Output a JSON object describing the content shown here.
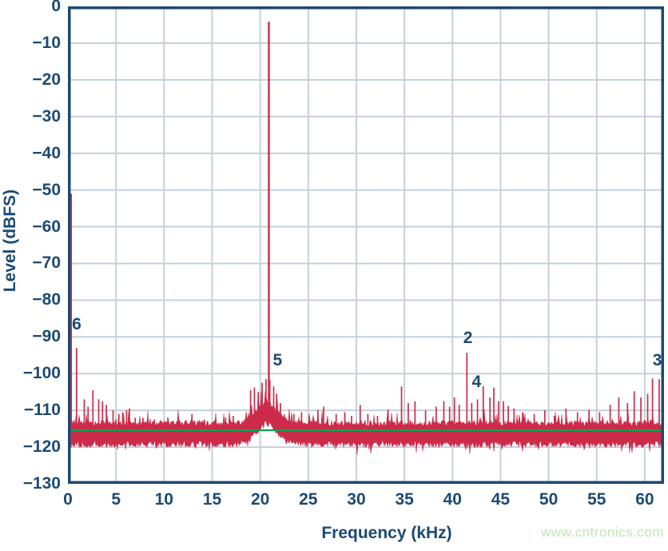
{
  "page": {
    "background": "#ffffff",
    "watermark": {
      "text": "www.cntronics.com",
      "color": "#bfe6b4"
    }
  },
  "chart_data": {
    "type": "line",
    "subtype": "fft-spectrum",
    "title": "",
    "xlabel": "Frequency (kHz)",
    "ylabel": "Level (dBFS)",
    "xlim": [
      0,
      62
    ],
    "ylim": [
      -130,
      0
    ],
    "x_ticks": [
      0,
      5,
      10,
      15,
      20,
      25,
      30,
      35,
      40,
      45,
      50,
      55,
      60
    ],
    "y_ticks": [
      0,
      -10,
      -20,
      -30,
      -40,
      -50,
      -60,
      -70,
      -80,
      -90,
      -100,
      -110,
      -120,
      -130
    ],
    "grid": true,
    "legend": "none",
    "colors": {
      "axis": "#1b4a72",
      "grid": "#c6d0db",
      "trace": "#cc2b49",
      "reference_line": "#00a551",
      "tick_label": "#1b4a72"
    },
    "fundamental": {
      "freq_khz": 20.9,
      "level_dbfs": -4.2
    },
    "reference_line_dbfs": -115.4,
    "noise_floor": {
      "mean_dbfs": -116.3,
      "top_edge_dbfs": -113.6,
      "bottom_edge_dbfs": -119.0,
      "spike_peaks_dbfs": -110.5,
      "dip_min_dbfs": -121.5
    },
    "hump": {
      "center_khz": 20.7,
      "sigma_khz": 1.05,
      "height_db": 5.5,
      "description": "elevated noise skirt around the fundamental, top near -107 dBFS"
    },
    "spurs": [
      [
        0.35,
        -51
      ],
      [
        0.9,
        -93
      ],
      [
        1.7,
        -107
      ],
      [
        2.1,
        -109
      ],
      [
        2.6,
        -104.5
      ],
      [
        3.2,
        -107
      ],
      [
        3.6,
        -107.5
      ],
      [
        4.0,
        -108.5
      ],
      [
        4.7,
        -110
      ],
      [
        5.3,
        -111
      ],
      [
        5.7,
        -110.5
      ],
      [
        6.1,
        -110
      ],
      [
        6.4,
        -109.5
      ],
      [
        7.0,
        -112
      ],
      [
        7.8,
        -112
      ],
      [
        9.0,
        -112.5
      ],
      [
        10.4,
        -112
      ],
      [
        11.6,
        -113
      ],
      [
        12.9,
        -111
      ],
      [
        14.2,
        -112.5
      ],
      [
        15.3,
        -113
      ],
      [
        16.4,
        -112
      ],
      [
        17.2,
        -111.5
      ],
      [
        19.0,
        -104.5
      ],
      [
        19.4,
        -103.8
      ],
      [
        19.8,
        -105
      ],
      [
        20.2,
        -102.5
      ],
      [
        20.6,
        -101.5
      ],
      [
        21.0,
        -101.8
      ],
      [
        21.4,
        -103.5
      ],
      [
        21.7,
        -105.5
      ],
      [
        22.1,
        -108
      ],
      [
        23.5,
        -111
      ],
      [
        24.3,
        -110.5
      ],
      [
        25.1,
        -111.5
      ],
      [
        26.0,
        -110
      ],
      [
        26.6,
        -109
      ],
      [
        27.9,
        -111
      ],
      [
        28.8,
        -110.5
      ],
      [
        29.5,
        -111.5
      ],
      [
        30.4,
        -108.5
      ],
      [
        31.2,
        -111
      ],
      [
        32.2,
        -111.5
      ],
      [
        33.3,
        -109.8
      ],
      [
        34.7,
        -103.5
      ],
      [
        35.4,
        -108
      ],
      [
        36.1,
        -107.5
      ],
      [
        37.2,
        -110
      ],
      [
        38.3,
        -109
      ],
      [
        39.1,
        -107.5
      ],
      [
        39.7,
        -109
      ],
      [
        40.2,
        -106.5
      ],
      [
        40.7,
        -108.5
      ],
      [
        41.5,
        -94.3
      ],
      [
        42.0,
        -108
      ],
      [
        42.6,
        -107
      ],
      [
        43.2,
        -103.4
      ],
      [
        43.9,
        -106.5
      ],
      [
        44.3,
        -103.8
      ],
      [
        44.8,
        -107.5
      ],
      [
        45.3,
        -107.5
      ],
      [
        45.8,
        -108.8
      ],
      [
        46.4,
        -109.5
      ],
      [
        47.3,
        -110.5
      ],
      [
        48.5,
        -111
      ],
      [
        49.6,
        -110
      ],
      [
        50.6,
        -111.5
      ],
      [
        51.8,
        -109.5
      ],
      [
        53.0,
        -110.5
      ],
      [
        54.2,
        -109.8
      ],
      [
        55.3,
        -110.5
      ],
      [
        56.4,
        -108.5
      ],
      [
        57.3,
        -106.5
      ],
      [
        58.2,
        -108
      ],
      [
        58.9,
        -104.8
      ],
      [
        59.6,
        -106.5
      ],
      [
        60.3,
        -105.5
      ],
      [
        60.8,
        -101.3
      ],
      [
        61.5,
        -101.5
      ]
    ],
    "annotations": [
      {
        "label": "6",
        "freq_khz": 0.91,
        "level_dbfs": -86.7
      },
      {
        "label": "5",
        "freq_khz": 21.8,
        "level_dbfs": -96.5
      },
      {
        "label": "2",
        "freq_khz": 41.6,
        "level_dbfs": -90.4
      },
      {
        "label": "4",
        "freq_khz": 42.5,
        "level_dbfs": -102.3
      },
      {
        "label": "3",
        "freq_khz": 61.3,
        "level_dbfs": -96.5
      }
    ]
  }
}
